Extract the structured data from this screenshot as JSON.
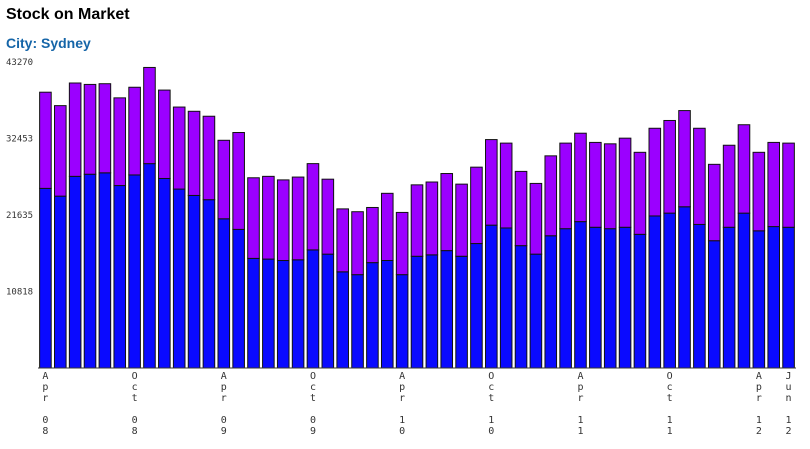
{
  "page": {
    "title": "Stock on Market",
    "subtitle": "City: Sydney"
  },
  "chart_data": {
    "type": "bar",
    "stacked": true,
    "ylim": [
      0,
      43270
    ],
    "yticks": [
      10818,
      21635,
      32453,
      43270
    ],
    "grid": false,
    "legend": "none",
    "series": [
      {
        "name": "",
        "color": "#0a0aff",
        "values": [
          25400,
          24300,
          27100,
          27400,
          27600,
          25800,
          27300,
          28900,
          26800,
          25300,
          24400,
          23800,
          21100,
          19600,
          15500,
          15400,
          15200,
          15300,
          16700,
          16100,
          13600,
          13200,
          14900,
          15200,
          13200,
          15800,
          16000,
          16600,
          15800,
          17600,
          20200,
          19800,
          17300,
          16100,
          18700,
          19700,
          20700,
          19900,
          19700,
          19900,
          18900,
          21500,
          21900,
          22800,
          20300,
          18000,
          19900,
          21900,
          19400,
          20000,
          19900
        ],
        "color_name": "blue"
      },
      {
        "name": "",
        "color": "#9b00ff",
        "values": [
          13600,
          12800,
          13200,
          12700,
          12600,
          12400,
          12400,
          13600,
          12500,
          11600,
          11900,
          11800,
          11100,
          13700,
          11400,
          11700,
          11400,
          11700,
          12200,
          10600,
          8900,
          8900,
          7800,
          9500,
          8800,
          10100,
          10300,
          10900,
          10200,
          10800,
          12100,
          12000,
          10500,
          10000,
          11300,
          12100,
          12500,
          12000,
          12000,
          12600,
          11600,
          12400,
          13100,
          13600,
          13600,
          10800,
          11600,
          12500,
          11100,
          11900,
          11900
        ],
        "color_name": "purple"
      }
    ],
    "x_labels": [
      {
        "index": 0,
        "label": "Apr 08"
      },
      {
        "index": 6,
        "label": "Oct 08"
      },
      {
        "index": 12,
        "label": "Apr 09"
      },
      {
        "index": 18,
        "label": "Oct 09"
      },
      {
        "index": 24,
        "label": "Apr 10"
      },
      {
        "index": 30,
        "label": "Oct 10"
      },
      {
        "index": 36,
        "label": "Apr 11"
      },
      {
        "index": 42,
        "label": "Oct 11"
      },
      {
        "index": 48,
        "label": "Apr 12"
      },
      {
        "index": 50,
        "label": "Jun 12"
      }
    ]
  }
}
